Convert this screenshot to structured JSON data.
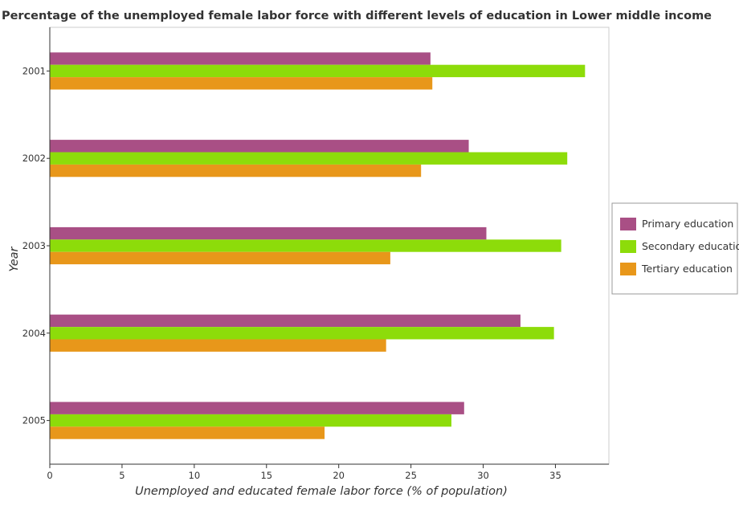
{
  "chart_data": {
    "type": "bar",
    "orientation": "horizontal",
    "title": "Percentage of the unemployed female labor force with different levels of education in Lower middle income",
    "xlabel": "Unemployed and educated female labor force (% of population)",
    "ylabel": "Year",
    "categories": [
      "2001",
      "2002",
      "2003",
      "2004",
      "2005"
    ],
    "xlim": [
      0,
      38.7
    ],
    "xticks": [
      0,
      5,
      10,
      15,
      20,
      25,
      30,
      35
    ],
    "grid": false,
    "legend_position": "right",
    "series": [
      {
        "name": "Primary education",
        "color": "#a94f85",
        "values": [
          26.35,
          29.0,
          30.22,
          32.58,
          28.68
        ]
      },
      {
        "name": "Secondary education",
        "color": "#8ddc0a",
        "values": [
          37.05,
          35.82,
          35.4,
          34.9,
          27.8
        ]
      },
      {
        "name": "Tertiary education",
        "color": "#e8971a",
        "values": [
          26.48,
          25.7,
          23.57,
          23.28,
          19.02
        ]
      }
    ]
  }
}
